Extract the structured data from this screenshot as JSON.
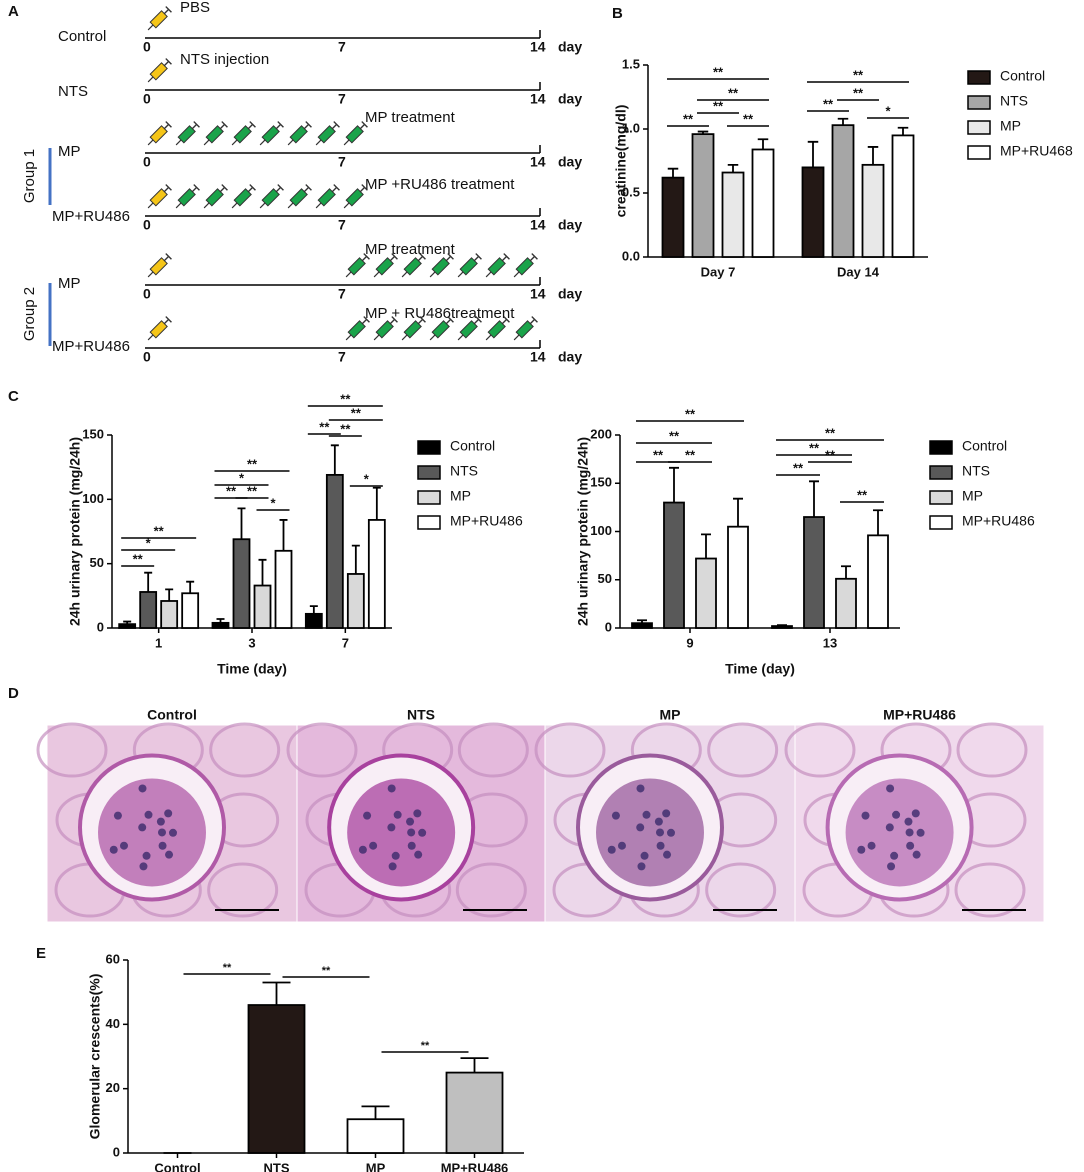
{
  "panel_labels": [
    "A",
    "B",
    "C",
    "D",
    "E"
  ],
  "timeline": {
    "axis": {
      "start": "0",
      "mid": "7",
      "end": "14",
      "unit": "day"
    },
    "groups": [
      "Group 1",
      "Group 2"
    ],
    "rows": [
      {
        "label": "Control",
        "note": "PBS"
      },
      {
        "label": "NTS",
        "note": "NTS injection"
      },
      {
        "label": "MP",
        "note": "MP treatment"
      },
      {
        "label": "MP+RU486",
        "note": "MP +RU486 treatment"
      },
      {
        "label": "MP",
        "note": "MP treatment"
      },
      {
        "label": "MP+RU486",
        "note": "MP + RU486treatment"
      }
    ]
  },
  "chart_data": [
    {
      "type": "bar",
      "ylabel": "creatinine(mg/dl)",
      "categories": [
        "Day 7",
        "Day 14"
      ],
      "series": [
        {
          "name": "Control",
          "color": "#231815",
          "values": [
            0.62,
            0.7
          ],
          "errors": [
            0.07,
            0.2
          ]
        },
        {
          "name": "NTS",
          "color": "#a6a6a6",
          "values": [
            0.96,
            1.03
          ],
          "errors": [
            0.02,
            0.05
          ]
        },
        {
          "name": "MP",
          "color": "#e8e8e8",
          "values": [
            0.66,
            0.72
          ],
          "errors": [
            0.06,
            0.14
          ]
        },
        {
          "name": "MP+RU468",
          "color": "#ffffff",
          "values": [
            0.84,
            0.95
          ],
          "errors": [
            0.08,
            0.06
          ]
        }
      ],
      "ylim": [
        0,
        1.5
      ],
      "yticks": [
        {
          "value": 0,
          "label": "0.0"
        },
        0.5,
        {
          "value": 1,
          "label": "1.0"
        },
        1.5
      ],
      "legend": "right",
      "significance": [
        "**",
        "**",
        "**",
        "**",
        "**",
        "**",
        "**",
        "*",
        "**"
      ]
    },
    {
      "type": "bar",
      "ylabel": "24h urinary protein (mg/24h)",
      "xlabel": "Time (day)",
      "categories": [
        "1",
        "3",
        "7"
      ],
      "series": [
        {
          "name": "Control",
          "color": "#000000",
          "values": [
            3,
            4,
            11
          ],
          "errors": [
            2,
            3,
            6
          ]
        },
        {
          "name": "NTS",
          "color": "#595959",
          "values": [
            28,
            69,
            119
          ],
          "errors": [
            15,
            24,
            23
          ]
        },
        {
          "name": "MP",
          "color": "#d9d9d9",
          "values": [
            21,
            33,
            42
          ],
          "errors": [
            9,
            20,
            22
          ]
        },
        {
          "name": "MP+RU486",
          "color": "#ffffff",
          "values": [
            27,
            60,
            84
          ],
          "errors": [
            9,
            24,
            25
          ]
        }
      ],
      "ylim": [
        0,
        150
      ],
      "yticks": [
        0,
        50,
        100,
        150
      ],
      "legend": "right",
      "significance": [
        "**",
        "*",
        "**",
        "**",
        "**",
        "*",
        "*",
        "**",
        "**",
        "**",
        "*",
        "**",
        "**"
      ]
    },
    {
      "type": "bar",
      "ylabel": "24h urinary protein (mg/24h)",
      "xlabel": "Time (day)",
      "categories": [
        "9",
        "13"
      ],
      "series": [
        {
          "name": "Control",
          "color": "#000000",
          "values": [
            5,
            2
          ],
          "errors": [
            3,
            1
          ]
        },
        {
          "name": "NTS",
          "color": "#595959",
          "values": [
            130,
            115
          ],
          "errors": [
            36,
            37
          ]
        },
        {
          "name": "MP",
          "color": "#d9d9d9",
          "values": [
            72,
            51
          ],
          "errors": [
            25,
            13
          ]
        },
        {
          "name": "MP+RU486",
          "color": "#ffffff",
          "values": [
            105,
            96
          ],
          "errors": [
            29,
            26
          ]
        }
      ],
      "ylim": [
        0,
        200
      ],
      "yticks": [
        0,
        50,
        100,
        150,
        200
      ],
      "legend": "right",
      "significance": [
        "**",
        "**",
        "**",
        "**",
        "**",
        "**",
        "**",
        "**",
        "**"
      ]
    },
    {
      "type": "bar",
      "ylabel": "Glomerular crescents(%)",
      "categories": [
        "Control",
        "NTS",
        "MP",
        "MP+RU486"
      ],
      "values": [
        0,
        46,
        10.5,
        25
      ],
      "errors": [
        0,
        7,
        4,
        4.5
      ],
      "colors": [
        "#000000",
        "#231815",
        "#ffffff",
        "#bfbfbf"
      ],
      "ylim": [
        0,
        60
      ],
      "yticks": [
        0,
        20,
        40,
        60
      ],
      "significance": [
        "**",
        "**",
        "**"
      ]
    }
  ],
  "histology": {
    "titles": [
      "Control",
      "NTS",
      "MP",
      "MP+RU486"
    ]
  }
}
